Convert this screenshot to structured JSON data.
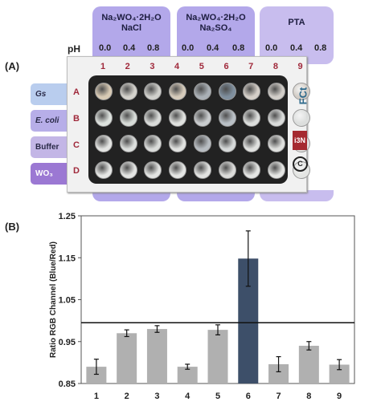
{
  "panel_a": {
    "label": "(A)",
    "ph_label": "pH",
    "groups": [
      {
        "line1": "Na₂WO₄·2H₂O",
        "line2": "NaCl",
        "ph": [
          "0.0",
          "0.4",
          "0.8"
        ],
        "color": "#b3a8ea"
      },
      {
        "line1": "Na₂WO₄·2H₂O",
        "line2": "Na₂SO₄",
        "ph": [
          "0.0",
          "0.4",
          "0.8"
        ],
        "color": "#b3a8ea"
      },
      {
        "line1": "PTA",
        "line2": "",
        "ph": [
          "0.0",
          "0.4",
          "0.8"
        ],
        "color": "#c8bdee"
      }
    ],
    "rows": [
      {
        "tab": "Gs",
        "letter": "A",
        "color": "#b9cdee"
      },
      {
        "tab": "E. coli",
        "letter": "B",
        "color": "#b7aee8"
      },
      {
        "tab": "Buffer",
        "letter": "C",
        "color": "#c3b6e6"
      },
      {
        "tab": "WO₃",
        "letter": "D",
        "color": "#9b78d3"
      }
    ],
    "columns": [
      "1",
      "2",
      "3",
      "4",
      "5",
      "6",
      "7",
      "8",
      "9"
    ],
    "well_colors": [
      [
        "#d8cab4",
        "#d4d2cc",
        "#d0d0cc",
        "#d6cbbb",
        "#aab0b6",
        "#7f8f9e",
        "#d5cfc8",
        "#d2cec9",
        "#d3cdc6"
      ],
      [
        "#dde2de",
        "#d7dcd8",
        "#dadcda",
        "#e0e2df",
        "#c9ccce",
        "#b9c0c6",
        "#dcdedc",
        "#dadcdb",
        "#dcdedd"
      ],
      [
        "#e3e4e2",
        "#dcdfdd",
        "#dadcda",
        "#e1e2e0",
        "#b7bcc1",
        "#d6d9d9",
        "#e0e1df",
        "#dfe0de",
        "#e1e2e0"
      ],
      [
        "#e6e7e5",
        "#e4e5e3",
        "#e3e4e2",
        "#e5e6e4",
        "#e2e3e1",
        "#dcdcda",
        "#e4e5e3",
        "#e5e6e4",
        "#e4e5e3"
      ]
    ],
    "logos": {
      "fct": "FCt",
      "i3n": "i3N",
      "c": "C"
    }
  },
  "panel_b_label": "(B)",
  "chart_data": {
    "type": "bar",
    "categories": [
      "1",
      "2",
      "3",
      "4",
      "5",
      "6",
      "7",
      "8",
      "9"
    ],
    "values": [
      0.89,
      0.97,
      0.98,
      0.89,
      0.978,
      1.148,
      0.896,
      0.94,
      0.895
    ],
    "errors": [
      0.018,
      0.008,
      0.008,
      0.006,
      0.012,
      0.066,
      0.018,
      0.01,
      0.012
    ],
    "bar_colors": [
      "#b0b0b0",
      "#b0b0b0",
      "#b0b0b0",
      "#b0b0b0",
      "#b0b0b0",
      "#3d4f69",
      "#b0b0b0",
      "#b0b0b0",
      "#b0b0b0"
    ],
    "threshold": 0.995,
    "ylabel": "Ratio RGB Channel (Blue/Red)",
    "ylim": [
      0.85,
      1.25
    ],
    "yticks": [
      "0.85",
      "0.95",
      "1.05",
      "1.15",
      "1.25"
    ],
    "ytick_values": [
      0.85,
      0.95,
      1.05,
      1.15,
      1.25
    ]
  }
}
